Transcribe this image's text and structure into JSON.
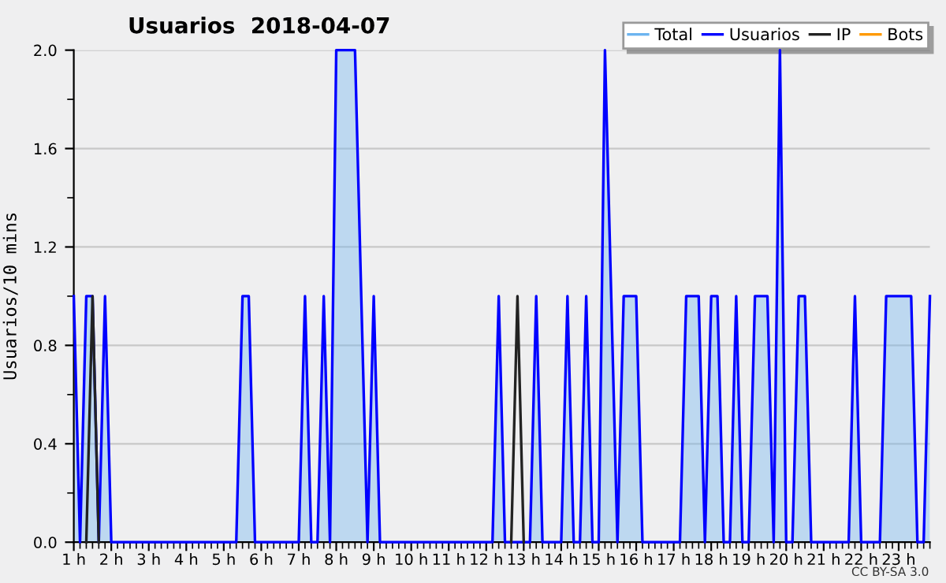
{
  "chart_data": {
    "type": "line",
    "title": "Usuarios  2018-04-07",
    "ylabel": "Usuarios/10 mins",
    "x": [
      "2018-04-07T01:00",
      "2018-04-07T01:10",
      "2018-04-07T01:20",
      "2018-04-07T01:30",
      "2018-04-07T01:40",
      "2018-04-07T01:50",
      "2018-04-07T02:00",
      "2018-04-07T02:10",
      "2018-04-07T02:20",
      "2018-04-07T02:30",
      "2018-04-07T02:40",
      "2018-04-07T02:50",
      "2018-04-07T03:00",
      "2018-04-07T03:10",
      "2018-04-07T03:20",
      "2018-04-07T03:30",
      "2018-04-07T03:40",
      "2018-04-07T03:50",
      "2018-04-07T04:00",
      "2018-04-07T04:10",
      "2018-04-07T04:20",
      "2018-04-07T04:30",
      "2018-04-07T04:40",
      "2018-04-07T04:50",
      "2018-04-07T05:00",
      "2018-04-07T05:10",
      "2018-04-07T05:20",
      "2018-04-07T05:30",
      "2018-04-07T05:40",
      "2018-04-07T05:50",
      "2018-04-07T06:00",
      "2018-04-07T06:10",
      "2018-04-07T06:20",
      "2018-04-07T06:30",
      "2018-04-07T06:40",
      "2018-04-07T06:50",
      "2018-04-07T07:00",
      "2018-04-07T07:10",
      "2018-04-07T07:20",
      "2018-04-07T07:30",
      "2018-04-07T07:40",
      "2018-04-07T07:50",
      "2018-04-07T08:00",
      "2018-04-07T08:10",
      "2018-04-07T08:20",
      "2018-04-07T08:30",
      "2018-04-07T08:40",
      "2018-04-07T08:50",
      "2018-04-07T09:00",
      "2018-04-07T09:10",
      "2018-04-07T09:20",
      "2018-04-07T09:30",
      "2018-04-07T09:40",
      "2018-04-07T09:50",
      "2018-04-07T10:00",
      "2018-04-07T10:10",
      "2018-04-07T10:20",
      "2018-04-07T10:30",
      "2018-04-07T10:40",
      "2018-04-07T10:50",
      "2018-04-07T11:00",
      "2018-04-07T11:10",
      "2018-04-07T11:20",
      "2018-04-07T11:30",
      "2018-04-07T11:40",
      "2018-04-07T11:50",
      "2018-04-07T12:00",
      "2018-04-07T12:10",
      "2018-04-07T12:20",
      "2018-04-07T12:30",
      "2018-04-07T12:40",
      "2018-04-07T12:50",
      "2018-04-07T13:00",
      "2018-04-07T13:10",
      "2018-04-07T13:20",
      "2018-04-07T13:30",
      "2018-04-07T13:40",
      "2018-04-07T13:50",
      "2018-04-07T14:00",
      "2018-04-07T14:10",
      "2018-04-07T14:20",
      "2018-04-07T14:30",
      "2018-04-07T14:40",
      "2018-04-07T14:50",
      "2018-04-07T15:00",
      "2018-04-07T15:10",
      "2018-04-07T15:20",
      "2018-04-07T15:30",
      "2018-04-07T15:40",
      "2018-04-07T15:50",
      "2018-04-07T16:00",
      "2018-04-07T16:10",
      "2018-04-07T16:20",
      "2018-04-07T16:30",
      "2018-04-07T16:40",
      "2018-04-07T16:50",
      "2018-04-07T17:00",
      "2018-04-07T17:10",
      "2018-04-07T17:20",
      "2018-04-07T17:30",
      "2018-04-07T17:40",
      "2018-04-07T17:50",
      "2018-04-07T18:00",
      "2018-04-07T18:10",
      "2018-04-07T18:20",
      "2018-04-07T18:30",
      "2018-04-07T18:40",
      "2018-04-07T18:50",
      "2018-04-07T19:00",
      "2018-04-07T19:10",
      "2018-04-07T19:20",
      "2018-04-07T19:30",
      "2018-04-07T19:40",
      "2018-04-07T19:50",
      "2018-04-07T20:00",
      "2018-04-07T20:10",
      "2018-04-07T20:20",
      "2018-04-07T20:30",
      "2018-04-07T20:40",
      "2018-04-07T20:50",
      "2018-04-07T21:00",
      "2018-04-07T21:10",
      "2018-04-07T21:20",
      "2018-04-07T21:30",
      "2018-04-07T21:40",
      "2018-04-07T21:50",
      "2018-04-07T22:00",
      "2018-04-07T22:10",
      "2018-04-07T22:20",
      "2018-04-07T22:30",
      "2018-04-07T22:40",
      "2018-04-07T22:50",
      "2018-04-07T23:00",
      "2018-04-07T23:10",
      "2018-04-07T23:20",
      "2018-04-07T23:30",
      "2018-04-07T23:40",
      "2018-04-07T23:50"
    ],
    "series": [
      {
        "name": "Total",
        "color": "#6cb4f0",
        "values": [
          null,
          null,
          null,
          null,
          null,
          null,
          null,
          null,
          null,
          null,
          null,
          null,
          null,
          null,
          null,
          null,
          null,
          null,
          null,
          null,
          null,
          null,
          null,
          null,
          null,
          null,
          null,
          null,
          null,
          null,
          null,
          null,
          null,
          null,
          null,
          null,
          null,
          null,
          null,
          null,
          null,
          null,
          null,
          null,
          null,
          null,
          null,
          null,
          null,
          null,
          null,
          null,
          null,
          null,
          null,
          null,
          null,
          null,
          null,
          null,
          null,
          null,
          null,
          null,
          null,
          null,
          null,
          null,
          null,
          null,
          null,
          null,
          null,
          null,
          null,
          null,
          null,
          null,
          null,
          null,
          null,
          null,
          null,
          null,
          null,
          null,
          null,
          null,
          null,
          null,
          null,
          null,
          null,
          null,
          null,
          null,
          null,
          null,
          null,
          null,
          null,
          null,
          null,
          null,
          null,
          null,
          null,
          null,
          null,
          null,
          null,
          null,
          null,
          null,
          null,
          null,
          null,
          null,
          null,
          null,
          null,
          null,
          null,
          null,
          null,
          null,
          null,
          null,
          null,
          null,
          null,
          null,
          null,
          null,
          null,
          null,
          null,
          null
        ]
      },
      {
        "name": "Usuarios",
        "type": "area",
        "color": "#0000ff",
        "values": [
          1,
          0,
          1,
          1,
          0,
          1,
          0,
          0,
          0,
          0,
          0,
          0,
          0,
          0,
          0,
          0,
          0,
          0,
          0,
          0,
          0,
          0,
          0,
          0,
          0,
          0,
          0,
          1,
          1,
          0,
          0,
          0,
          0,
          0,
          0,
          0,
          0,
          1,
          0,
          0,
          1,
          0,
          2,
          2,
          2,
          2,
          1,
          0,
          1,
          0,
          0,
          0,
          0,
          0,
          0,
          0,
          0,
          0,
          0,
          0,
          0,
          0,
          0,
          0,
          0,
          0,
          0,
          0,
          1,
          0,
          0,
          0,
          0,
          0,
          1,
          0,
          0,
          0,
          0,
          1,
          0,
          0,
          1,
          0,
          0,
          2,
          1,
          0,
          1,
          1,
          1,
          0,
          0,
          0,
          0,
          0,
          0,
          0,
          1,
          1,
          1,
          0,
          1,
          1,
          0,
          0,
          1,
          0,
          0,
          1,
          1,
          1,
          0,
          2,
          0,
          0,
          1,
          1,
          0,
          0,
          0,
          0,
          0,
          0,
          0,
          1,
          0,
          0,
          0,
          0,
          1,
          1,
          1,
          1,
          1,
          0,
          0,
          1
        ]
      },
      {
        "name": "IP",
        "color": "#222222",
        "values": [
          null,
          null,
          0,
          1,
          0,
          null,
          null,
          null,
          null,
          null,
          null,
          null,
          null,
          null,
          null,
          null,
          null,
          null,
          null,
          null,
          null,
          null,
          null,
          null,
          null,
          null,
          null,
          null,
          null,
          null,
          null,
          null,
          null,
          null,
          null,
          null,
          null,
          null,
          null,
          null,
          null,
          null,
          null,
          null,
          null,
          null,
          null,
          null,
          null,
          null,
          null,
          null,
          null,
          null,
          null,
          null,
          null,
          null,
          null,
          null,
          null,
          null,
          null,
          null,
          null,
          null,
          null,
          null,
          null,
          null,
          0,
          1,
          0,
          null,
          null,
          null,
          null,
          null,
          null,
          null,
          null,
          null,
          null,
          null,
          null,
          null,
          null,
          null,
          null,
          null,
          null,
          null,
          null,
          null,
          null,
          null,
          null,
          null,
          null,
          null,
          null,
          null,
          null,
          null,
          null,
          null,
          null,
          null,
          null,
          null,
          null,
          null,
          null,
          null,
          null,
          null,
          null,
          null,
          null,
          null,
          null,
          null,
          null,
          null,
          null,
          null,
          null,
          null,
          null,
          null,
          null,
          null,
          null,
          null,
          null,
          null,
          null,
          null
        ]
      },
      {
        "name": "Bots",
        "color": "#ff9900",
        "values": [
          null,
          null,
          null,
          null,
          null,
          null,
          null,
          null,
          null,
          null,
          null,
          null,
          null,
          null,
          null,
          null,
          null,
          null,
          null,
          null,
          null,
          null,
          null,
          null,
          null,
          null,
          null,
          null,
          null,
          null,
          null,
          null,
          null,
          null,
          null,
          null,
          null,
          null,
          null,
          null,
          null,
          null,
          null,
          null,
          null,
          null,
          null,
          null,
          null,
          null,
          null,
          null,
          null,
          null,
          null,
          null,
          null,
          null,
          null,
          null,
          null,
          null,
          null,
          null,
          null,
          null,
          null,
          null,
          null,
          null,
          null,
          null,
          null,
          null,
          null,
          null,
          null,
          null,
          null,
          null,
          null,
          null,
          null,
          null,
          null,
          null,
          null,
          null,
          null,
          null,
          null,
          null,
          null,
          null,
          null,
          null,
          null,
          null,
          null,
          null,
          null,
          null,
          null,
          null,
          null,
          null,
          null,
          null,
          null,
          null,
          null,
          null,
          null,
          null,
          null,
          null,
          null,
          null,
          null,
          null,
          null,
          null,
          null,
          null,
          null,
          null,
          null,
          null,
          null,
          null,
          null,
          null,
          null,
          null,
          null,
          null,
          null,
          null
        ]
      }
    ],
    "xlim": [
      "2018-04-07T01:00",
      "2018-04-07T23:50"
    ],
    "xticks": [
      {
        "value": "2018-04-07T01:00",
        "label": "1 h"
      },
      {
        "value": "2018-04-07T02:00",
        "label": "2 h"
      },
      {
        "value": "2018-04-07T03:00",
        "label": "3 h"
      },
      {
        "value": "2018-04-07T04:00",
        "label": "4 h"
      },
      {
        "value": "2018-04-07T05:00",
        "label": "5 h"
      },
      {
        "value": "2018-04-07T06:00",
        "label": "6 h"
      },
      {
        "value": "2018-04-07T07:00",
        "label": "7 h"
      },
      {
        "value": "2018-04-07T08:00",
        "label": "8 h"
      },
      {
        "value": "2018-04-07T09:00",
        "label": "9 h"
      },
      {
        "value": "2018-04-07T10:00",
        "label": "10 h"
      },
      {
        "value": "2018-04-07T11:00",
        "label": "11 h"
      },
      {
        "value": "2018-04-07T12:00",
        "label": "12 h"
      },
      {
        "value": "2018-04-07T13:00",
        "label": "13 h"
      },
      {
        "value": "2018-04-07T14:00",
        "label": "14 h"
      },
      {
        "value": "2018-04-07T15:00",
        "label": "15 h"
      },
      {
        "value": "2018-04-07T16:00",
        "label": "16 h"
      },
      {
        "value": "2018-04-07T17:00",
        "label": "17 h"
      },
      {
        "value": "2018-04-07T18:00",
        "label": "18 h"
      },
      {
        "value": "2018-04-07T19:00",
        "label": "19 h"
      },
      {
        "value": "2018-04-07T20:00",
        "label": "20 h"
      },
      {
        "value": "2018-04-07T21:00",
        "label": "21 h"
      },
      {
        "value": "2018-04-07T22:00",
        "label": "22 h"
      },
      {
        "value": "2018-04-07T23:00",
        "label": "23 h"
      }
    ],
    "ylim": [
      0,
      2
    ],
    "yticks": [
      {
        "value": 0,
        "label": "0.0"
      },
      {
        "value": 0.4,
        "label": "0.4"
      },
      {
        "value": 0.8,
        "label": "0.8"
      },
      {
        "value": 1.2,
        "label": "1.2"
      },
      {
        "value": 1.6,
        "label": "1.6"
      },
      {
        "value": 2,
        "label": "2.0"
      }
    ],
    "grid": "y",
    "legend": "top right",
    "marker": "none",
    "line_style": "solid",
    "annotations": [
      "CC BY-SA 3.0"
    ]
  }
}
